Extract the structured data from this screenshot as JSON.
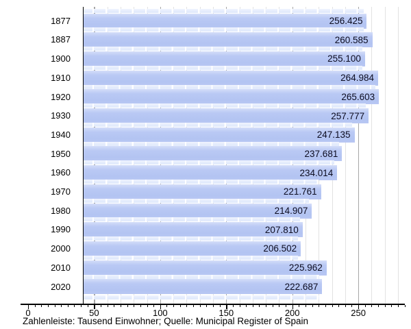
{
  "chart_data": {
    "type": "bar",
    "orientation": "horizontal",
    "categories": [
      "1877",
      "1887",
      "1900",
      "1910",
      "1920",
      "1930",
      "1940",
      "1950",
      "1960",
      "1970",
      "1980",
      "1990",
      "2000",
      "2010",
      "2020"
    ],
    "values": [
      256.425,
      260.585,
      255.1,
      264.984,
      265.603,
      257.777,
      247.135,
      237.681,
      234.014,
      221.761,
      214.907,
      207.81,
      206.502,
      225.962,
      222.687
    ],
    "value_labels": [
      "256.425",
      "260.585",
      "255.100",
      "264.984",
      "265.603",
      "257.777",
      "247.135",
      "237.681",
      "234.014",
      "221.761",
      "214.907",
      "207.810",
      "206.502",
      "225.962",
      "222.687"
    ],
    "caption": "Zahlenleiste: Tausend Einwohner; Quelle: Municipal Register of Spain",
    "x_axis": {
      "tick_labels": [
        "0",
        "50",
        "100",
        "150",
        "200",
        "250"
      ],
      "labeled_tick_values": [
        0,
        50,
        100,
        150,
        200,
        250
      ],
      "minor_tick_step": 5,
      "gridline_minor_step": 10,
      "gridline_major_step": 50,
      "max_value_shown": 285
    },
    "grid": "on",
    "legend": "none",
    "colors": {
      "bar": "#b5c5f2",
      "bar_highlight": "#d4ddf9",
      "gap_stripe": "#e3ebfc",
      "grid_minor": "#e2e2e2",
      "grid_major": "#a6a6a6",
      "axis": "#000000",
      "label_text": "#0c0c20"
    }
  }
}
